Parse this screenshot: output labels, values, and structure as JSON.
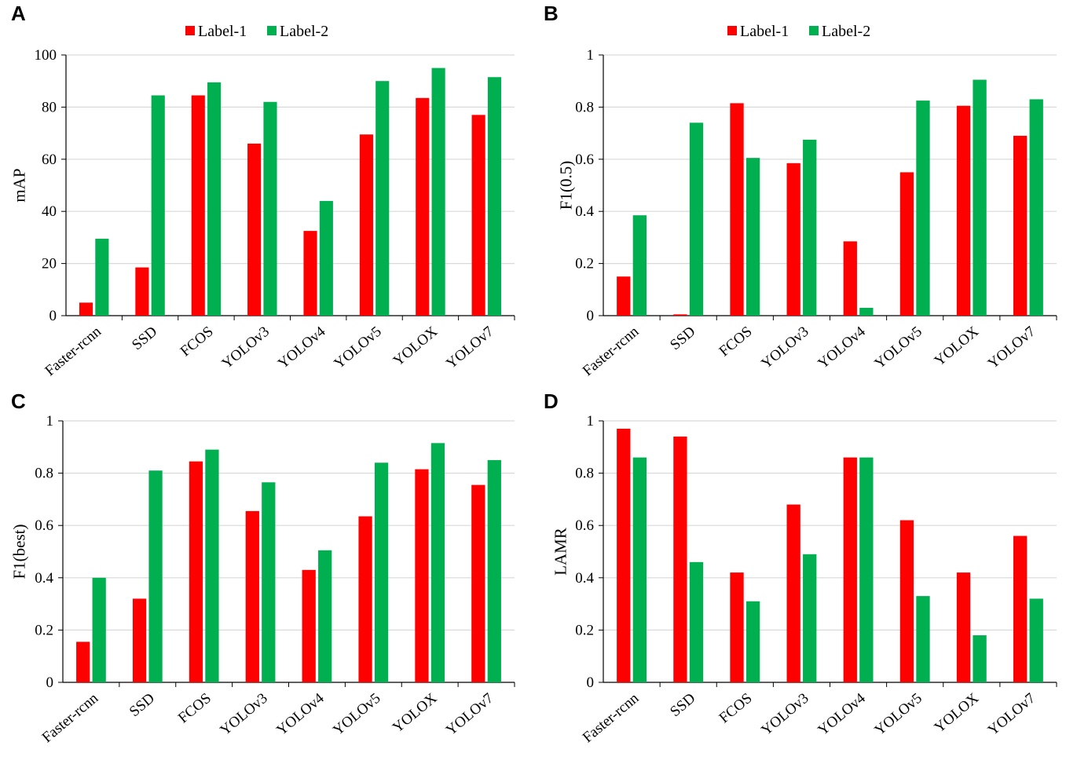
{
  "chart_data": [
    {
      "panel": "A",
      "type": "bar",
      "categories": [
        "Faster-rcnn",
        "SSD",
        "FCOS",
        "YOLOv3",
        "YOLOv4",
        "YOLOv5",
        "YOLOX",
        "YOLOv7"
      ],
      "series": [
        {
          "name": "Label-1",
          "color": "#ff0000",
          "values": [
            5,
            18.5,
            84.5,
            66,
            32.5,
            69.5,
            83.5,
            77
          ]
        },
        {
          "name": "Label-2",
          "color": "#00b050",
          "values": [
            29.5,
            84.5,
            89.5,
            82,
            44,
            90,
            95,
            91.5
          ]
        }
      ],
      "ylabel": "mAP",
      "ylim": [
        0,
        100
      ],
      "yticks": [
        0,
        20,
        40,
        60,
        80,
        100
      ],
      "ytick_labels": [
        "0",
        "20",
        "40",
        "60",
        "80",
        "100"
      ],
      "grid": true,
      "legend": "top-center"
    },
    {
      "panel": "B",
      "type": "bar",
      "categories": [
        "Faster-rcnn",
        "SSD",
        "FCOS",
        "YOLOv3",
        "YOLOv4",
        "YOLOv5",
        "YOLOX",
        "YOLOv7"
      ],
      "series": [
        {
          "name": "Label-1",
          "color": "#ff0000",
          "values": [
            0.15,
            0.005,
            0.815,
            0.585,
            0.285,
            0.55,
            0.805,
            0.69
          ]
        },
        {
          "name": "Label-2",
          "color": "#00b050",
          "values": [
            0.385,
            0.74,
            0.605,
            0.675,
            0.03,
            0.825,
            0.905,
            0.83
          ]
        }
      ],
      "ylabel": "F1(0.5)",
      "ylim": [
        0,
        1
      ],
      "yticks": [
        0,
        0.2,
        0.4,
        0.6,
        0.8,
        1
      ],
      "ytick_labels": [
        "0",
        "0.2",
        "0.4",
        "0.6",
        "0.8",
        "1"
      ],
      "grid": true,
      "legend": "top-center"
    },
    {
      "panel": "C",
      "type": "bar",
      "categories": [
        "Faster-rcnn",
        "SSD",
        "FCOS",
        "YOLOv3",
        "YOLOv4",
        "YOLOv5",
        "YOLOX",
        "YOLOv7"
      ],
      "series": [
        {
          "name": "Label-1",
          "color": "#ff0000",
          "values": [
            0.155,
            0.32,
            0.845,
            0.655,
            0.43,
            0.635,
            0.815,
            0.755
          ]
        },
        {
          "name": "Label-2",
          "color": "#00b050",
          "values": [
            0.4,
            0.81,
            0.89,
            0.765,
            0.505,
            0.84,
            0.915,
            0.85
          ]
        }
      ],
      "ylabel": "F1(best)",
      "ylim": [
        0,
        1
      ],
      "yticks": [
        0,
        0.2,
        0.4,
        0.6,
        0.8,
        1
      ],
      "ytick_labels": [
        "0",
        "0.2",
        "0.4",
        "0.6",
        "0.8",
        "1"
      ],
      "grid": true,
      "legend": "none"
    },
    {
      "panel": "D",
      "type": "bar",
      "categories": [
        "Faster-rcnn",
        "SSD",
        "FCOS",
        "YOLOv3",
        "YOLOv4",
        "YOLOv5",
        "YOLOX",
        "YOLOv7"
      ],
      "series": [
        {
          "name": "Label-1",
          "color": "#ff0000",
          "values": [
            0.97,
            0.94,
            0.42,
            0.68,
            0.86,
            0.62,
            0.42,
            0.56
          ]
        },
        {
          "name": "Label-2",
          "color": "#00b050",
          "values": [
            0.86,
            0.46,
            0.31,
            0.49,
            0.86,
            0.33,
            0.18,
            0.32
          ]
        }
      ],
      "ylabel": "LAMR",
      "ylim": [
        0,
        1
      ],
      "yticks": [
        0,
        0.2,
        0.4,
        0.6,
        0.8,
        1
      ],
      "ytick_labels": [
        "0",
        "0.2",
        "0.4",
        "0.6",
        "0.8",
        "1"
      ],
      "grid": true,
      "legend": "none"
    }
  ]
}
